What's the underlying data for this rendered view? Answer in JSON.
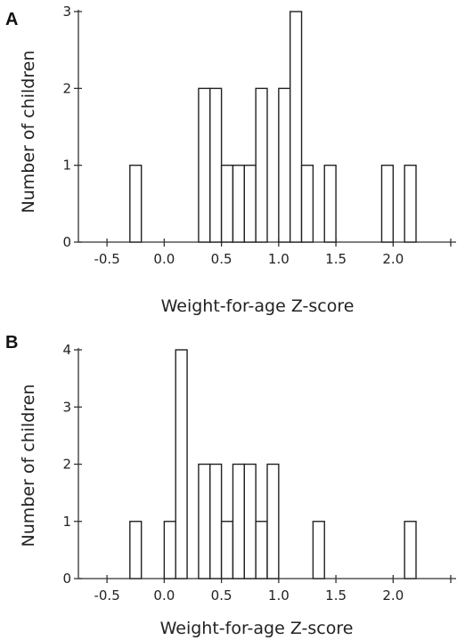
{
  "chart_data": [
    {
      "type": "bar",
      "panel_label": "A",
      "xlabel": "Weight-for-age Z-score",
      "ylabel": "Number of children",
      "xlim": [
        -0.75,
        2.55
      ],
      "ylim": [
        0,
        3
      ],
      "xticks": [
        -0.5,
        0.0,
        0.5,
        1.0,
        1.5,
        2.0
      ],
      "xtick_labels": [
        "-0.5",
        "0.0",
        "0.5",
        "1.0",
        "1.5",
        "2.0"
      ],
      "yticks": [
        0,
        1,
        2,
        3
      ],
      "ytick_labels": [
        "0",
        "1",
        "2",
        "3"
      ],
      "bin_width": 0.1,
      "bins": [
        {
          "x": -0.3,
          "count": 1
        },
        {
          "x": 0.3,
          "count": 2
        },
        {
          "x": 0.4,
          "count": 2
        },
        {
          "x": 0.5,
          "count": 1
        },
        {
          "x": 0.6,
          "count": 1
        },
        {
          "x": 0.7,
          "count": 1
        },
        {
          "x": 0.8,
          "count": 2
        },
        {
          "x": 1.0,
          "count": 2
        },
        {
          "x": 1.1,
          "count": 3
        },
        {
          "x": 1.2,
          "count": 1
        },
        {
          "x": 1.4,
          "count": 1
        },
        {
          "x": 1.9,
          "count": 1
        },
        {
          "x": 2.1,
          "count": 1
        }
      ],
      "grid": false
    },
    {
      "type": "bar",
      "panel_label": "B",
      "xlabel": "Weight-for-age Z-score",
      "ylabel": "Number of children",
      "xlim": [
        -0.75,
        2.55
      ],
      "ylim": [
        0,
        4
      ],
      "xticks": [
        -0.5,
        0.0,
        0.5,
        1.0,
        1.5,
        2.0
      ],
      "xtick_labels": [
        "-0.5",
        "0.0",
        "0.5",
        "1.0",
        "1.5",
        "2.0"
      ],
      "yticks": [
        0,
        1,
        2,
        3,
        4
      ],
      "ytick_labels": [
        "0",
        "1",
        "2",
        "3",
        "4"
      ],
      "bin_width": 0.1,
      "bins": [
        {
          "x": -0.3,
          "count": 1
        },
        {
          "x": 0.0,
          "count": 1
        },
        {
          "x": 0.1,
          "count": 4
        },
        {
          "x": 0.3,
          "count": 2
        },
        {
          "x": 0.4,
          "count": 2
        },
        {
          "x": 0.5,
          "count": 1
        },
        {
          "x": 0.6,
          "count": 2
        },
        {
          "x": 0.7,
          "count": 2
        },
        {
          "x": 0.8,
          "count": 1
        },
        {
          "x": 0.9,
          "count": 2
        },
        {
          "x": 1.3,
          "count": 1
        },
        {
          "x": 2.1,
          "count": 1
        }
      ],
      "grid": false
    }
  ]
}
